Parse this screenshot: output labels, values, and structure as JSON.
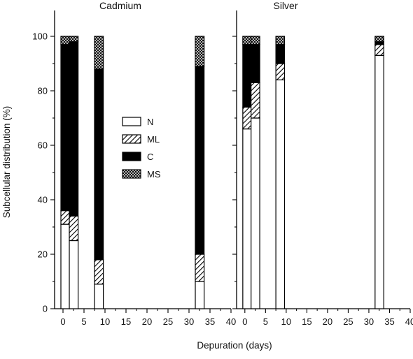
{
  "chart_data": {
    "type": "bar",
    "stacked": true,
    "xlabel": "Depuration (days)",
    "ylabel": "Subcellular distribution (%)",
    "ylim": [
      0,
      100
    ],
    "yticks": [
      0,
      20,
      40,
      60,
      80,
      100
    ],
    "xlim": [
      -2,
      40
    ],
    "xticks": [
      0,
      5,
      10,
      15,
      20,
      25,
      30,
      35,
      40
    ],
    "legend": {
      "placement": "inside left panel, center-right",
      "entries": [
        {
          "name": "N",
          "pattern": "white"
        },
        {
          "name": "ML",
          "pattern": "diagonal-hatch"
        },
        {
          "name": "C",
          "pattern": "black"
        },
        {
          "name": "MS",
          "pattern": "cross-hatch"
        }
      ]
    },
    "panels": [
      {
        "title": "Cadmium",
        "bars": [
          {
            "day": 0,
            "N": 31,
            "ML": 5,
            "C": 61,
            "MS": 3
          },
          {
            "day": 2,
            "N": 25,
            "ML": 9,
            "C": 64,
            "MS": 2
          },
          {
            "day": 8,
            "N": 9,
            "ML": 9,
            "C": 70,
            "MS": 12
          },
          {
            "day": 32,
            "N": 10,
            "ML": 10,
            "C": 69,
            "MS": 11
          }
        ]
      },
      {
        "title": "Silver",
        "bars": [
          {
            "day": 0,
            "N": 66,
            "ML": 8,
            "C": 23,
            "MS": 3
          },
          {
            "day": 2,
            "N": 70,
            "ML": 13,
            "C": 14,
            "MS": 3
          },
          {
            "day": 8,
            "N": 84,
            "ML": 6,
            "C": 7,
            "MS": 3
          },
          {
            "day": 32,
            "N": 93,
            "ML": 4,
            "C": 1,
            "MS": 2
          }
        ]
      }
    ]
  }
}
